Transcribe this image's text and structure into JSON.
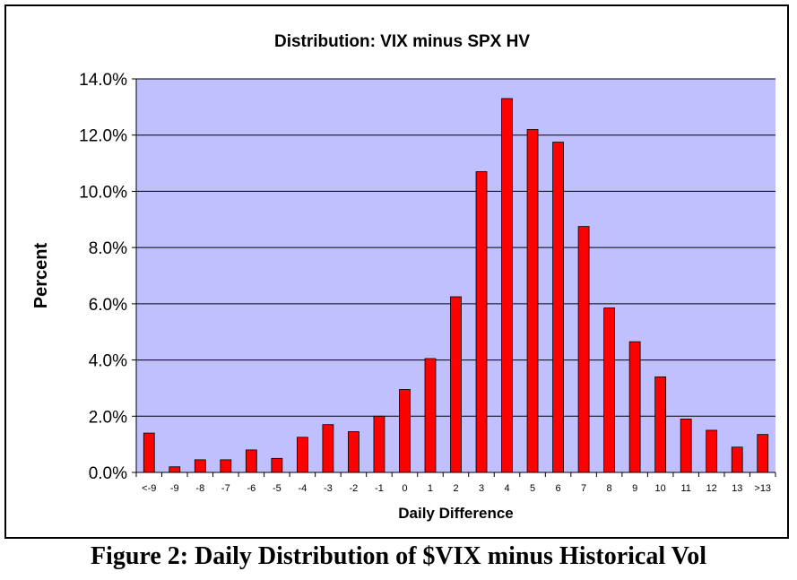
{
  "chart_data": {
    "type": "bar",
    "title": "Distribution: VIX minus SPX HV",
    "xlabel": "Daily Difference",
    "ylabel": "Percent",
    "ylim": [
      0,
      14
    ],
    "yticks": [
      "0.0%",
      "2.0%",
      "4.0%",
      "6.0%",
      "8.0%",
      "10.0%",
      "12.0%",
      "14.0%"
    ],
    "categories": [
      "<-9",
      "-9",
      "-8",
      "-7",
      "-6",
      "-5",
      "-4",
      "-3",
      "-2",
      "-1",
      "0",
      "1",
      "2",
      "3",
      "4",
      "5",
      "6",
      "7",
      "8",
      "9",
      "10",
      "11",
      "12",
      "13",
      ">13"
    ],
    "values": [
      1.4,
      0.2,
      0.45,
      0.45,
      0.8,
      0.5,
      1.25,
      1.7,
      1.45,
      2.0,
      2.95,
      4.05,
      6.25,
      10.7,
      13.3,
      12.2,
      11.75,
      8.75,
      5.85,
      4.65,
      3.4,
      1.9,
      1.5,
      0.9,
      1.35
    ],
    "grid": true,
    "legend": "none",
    "colors": {
      "bar": "#ff0000",
      "plot_background": "#c0c0ff",
      "gridline": "#000000"
    }
  },
  "caption": "Figure 2: Daily Distribution of $VIX minus Historical Vol"
}
